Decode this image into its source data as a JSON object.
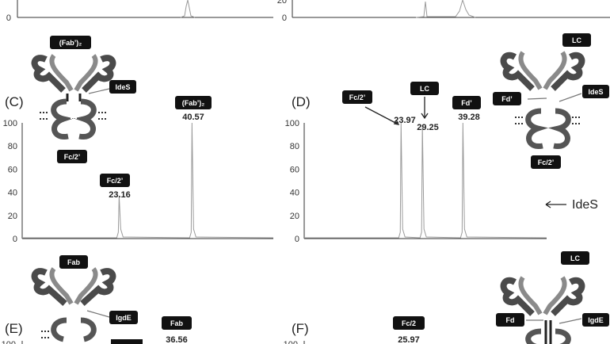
{
  "panels": [
    {
      "id": "top-left-partial",
      "label": "",
      "yticks": [
        "0"
      ],
      "peaks": [],
      "tags": []
    },
    {
      "id": "top-right-partial",
      "label": "",
      "yticks": [
        "0",
        "20"
      ],
      "peaks": [],
      "tags": []
    },
    {
      "id": "C",
      "label": "(C)",
      "yticks": [
        "0",
        "20",
        "40",
        "60",
        "80",
        "100"
      ],
      "peaks": [
        "23.16",
        "40.57"
      ],
      "tags": [
        "(Fab’)₂",
        "IdeS",
        "Fc/2’",
        "Fc/2’",
        "(Fab’)₂"
      ]
    },
    {
      "id": "D",
      "label": "(D)",
      "yticks": [
        "0",
        "20",
        "40",
        "60",
        "80",
        "100"
      ],
      "peaks": [
        "23.97",
        "29.25",
        "39.28"
      ],
      "tags": [
        "Fc/2’",
        "LC",
        "Fd’",
        "LC",
        "Fd’",
        "IdeS",
        "Fc/2’"
      ]
    },
    {
      "id": "E",
      "label": "(E)",
      "yticks": [
        "100"
      ],
      "peaks": [
        "36.56"
      ],
      "tags": [
        "Fab",
        "IgdE",
        "Fab"
      ]
    },
    {
      "id": "F",
      "label": "(F)",
      "yticks": [
        "100"
      ],
      "peaks": [
        "25.97"
      ],
      "tags": [
        "Fc/2",
        "LC",
        "Fd",
        "IgdE"
      ]
    }
  ],
  "arrow_label": "IdeS",
  "chart_data": [
    {
      "panel": "C",
      "type": "line",
      "x_unit": "retention time (min)",
      "ylim": [
        0,
        100
      ],
      "series": [
        {
          "x": [
            23.16,
            40.57
          ],
          "y": [
            37,
            100
          ]
        }
      ]
    },
    {
      "panel": "D",
      "type": "line",
      "x_unit": "retention time (min)",
      "ylim": [
        0,
        100
      ],
      "series": [
        {
          "x": [
            23.97,
            29.25,
            39.28
          ],
          "y": [
            100,
            98,
            100
          ]
        }
      ]
    }
  ],
  "colors": {
    "trace": "#9a9a9a",
    "axis": "#333333",
    "tag": "#111111",
    "antibody_dark": "#4a4a4a",
    "antibody_light": "#8a8a8a"
  }
}
